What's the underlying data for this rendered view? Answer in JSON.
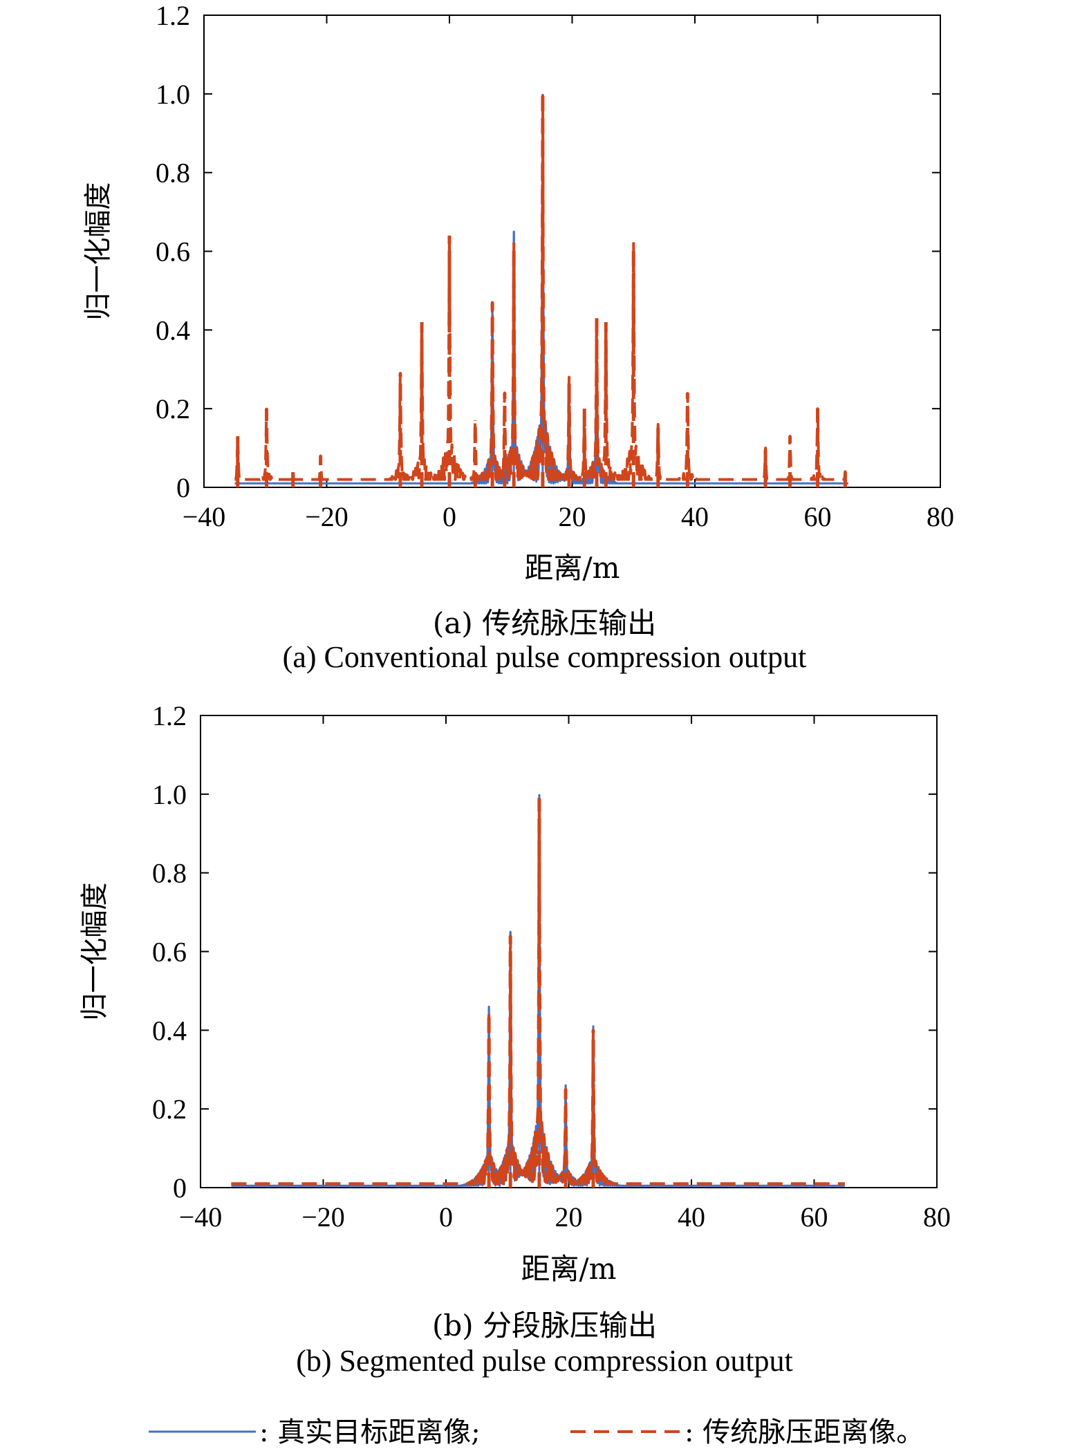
{
  "colors": {
    "true_series": "#4472c4",
    "conv_series": "#d0451b",
    "axis": "#000000"
  },
  "chart_data": [
    {
      "type": "line",
      "title": "(a) 传统脉压输出",
      "subtitle": "(a) Conventional pulse compression output",
      "xlabel": "距离/m",
      "ylabel": "归一化幅度",
      "xlim": [
        -40,
        80
      ],
      "ylim": [
        0,
        1.2
      ],
      "xticks": [
        "−40",
        "−20",
        "0",
        "20",
        "40",
        "60",
        "80"
      ],
      "yticks": [
        "0",
        "0.2",
        "0.4",
        "0.6",
        "0.8",
        "1.0",
        "1.2"
      ],
      "grid": false,
      "series": [
        {
          "name": "真实目标距离像",
          "style": "solid",
          "x_range": [
            -35,
            65
          ],
          "peaks": [
            [
              7.0,
              0.46
            ],
            [
              10.5,
              0.65
            ],
            [
              15.2,
              1.0
            ],
            [
              19.5,
              0.26
            ],
            [
              24.0,
              0.41
            ]
          ],
          "floor": 0.01
        },
        {
          "name": "传统脉压距离像",
          "style": "dashed",
          "x_range": [
            -35,
            65
          ],
          "peaks": [
            [
              -34.5,
              0.13
            ],
            [
              -29.8,
              0.2
            ],
            [
              -25.5,
              0.04
            ],
            [
              -21.0,
              0.08
            ],
            [
              -8.0,
              0.29
            ],
            [
              -4.5,
              0.42
            ],
            [
              0.0,
              0.64
            ],
            [
              4.2,
              0.17
            ],
            [
              7.0,
              0.47
            ],
            [
              9.0,
              0.24
            ],
            [
              10.5,
              0.62
            ],
            [
              15.2,
              1.0
            ],
            [
              19.5,
              0.28
            ],
            [
              22.0,
              0.2
            ],
            [
              24.0,
              0.43
            ],
            [
              25.5,
              0.42
            ],
            [
              30.0,
              0.62
            ],
            [
              34.0,
              0.16
            ],
            [
              38.8,
              0.24
            ],
            [
              51.5,
              0.1
            ],
            [
              55.5,
              0.13
            ],
            [
              60.0,
              0.2
            ],
            [
              64.5,
              0.04
            ]
          ],
          "floor": 0.02
        }
      ]
    },
    {
      "type": "line",
      "title": "(b) 分段脉压输出",
      "subtitle": "(b) Segmented pulse compression output",
      "xlabel": "距离/m",
      "ylabel": "归一化幅度",
      "xlim": [
        -40,
        80
      ],
      "ylim": [
        0,
        1.2
      ],
      "xticks": [
        "−40",
        "−20",
        "0",
        "20",
        "40",
        "60",
        "80"
      ],
      "yticks": [
        "0",
        "0.2",
        "0.4",
        "0.6",
        "0.8",
        "1.0",
        "1.2"
      ],
      "grid": false,
      "series": [
        {
          "name": "真实目标距离像",
          "style": "solid",
          "x_range": [
            -35,
            65
          ],
          "peaks": [
            [
              7.0,
              0.46
            ],
            [
              10.5,
              0.65
            ],
            [
              15.2,
              1.0
            ],
            [
              19.5,
              0.26
            ],
            [
              24.0,
              0.41
            ]
          ],
          "floor": 0.005
        },
        {
          "name": "传统脉压距离像",
          "style": "dashed",
          "x_range": [
            -35,
            65
          ],
          "peaks": [
            [
              7.0,
              0.45
            ],
            [
              10.5,
              0.64
            ],
            [
              15.2,
              0.99
            ],
            [
              19.5,
              0.25
            ],
            [
              24.0,
              0.4
            ]
          ],
          "floor": 0.01
        }
      ]
    }
  ],
  "legend": {
    "solid_label": ": 真实目标距离像;",
    "dashed_label": ": 传统脉压距离像。"
  }
}
